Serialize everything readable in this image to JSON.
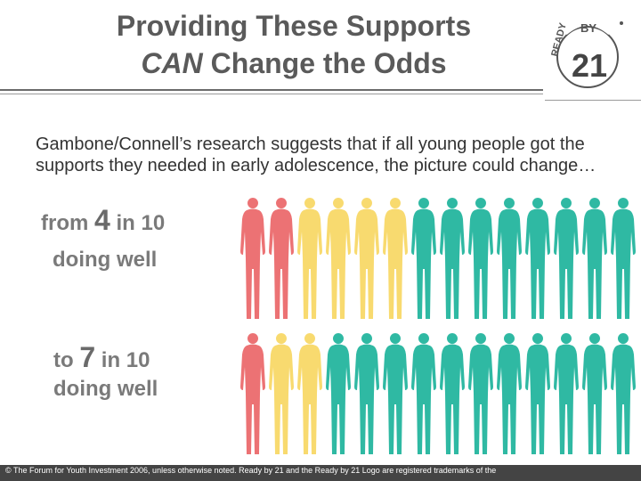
{
  "title": {
    "line1": "Providing These Supports",
    "line2_em": "CAN",
    "line2_rest": " Change the Odds"
  },
  "logo": {
    "text_ready": "READY",
    "text_by": "BY",
    "text_num": "21"
  },
  "body": "Gambone/Connell’s research suggests that if all young people got the supports they needed in early adolescence, the picture could change…",
  "row1": {
    "from": "from",
    "num": "4",
    "in10": "in 10",
    "doing": "doing well",
    "figures": [
      "red",
      "red",
      "yellow",
      "yellow",
      "yellow",
      "yellow",
      "green",
      "green",
      "green",
      "green",
      "green",
      "green",
      "green",
      "green"
    ]
  },
  "row2": {
    "to": "to",
    "num": "7",
    "in10": "in 10",
    "doing": "doing well",
    "figures": [
      "red",
      "yellow",
      "yellow",
      "green",
      "green",
      "green",
      "green",
      "green",
      "green",
      "green",
      "green",
      "green",
      "green",
      "green"
    ]
  },
  "colors": {
    "red": "#ec7274",
    "yellow": "#f8da6f",
    "green": "#2fb9a3"
  },
  "footer": "© The Forum for Youth Investment 2006, unless otherwise noted. Ready by 21 and the Ready by 21 Logo are registered trademarks of the"
}
